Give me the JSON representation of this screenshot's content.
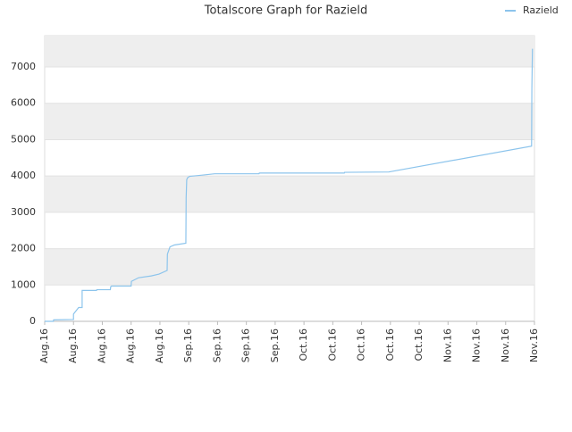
{
  "chart_data": {
    "type": "line",
    "title": "Totalscore Graph for Razield",
    "x": [
      0,
      0.3,
      0.31,
      1.0,
      1.0,
      1.1,
      1.18,
      1.3,
      1.3,
      1.8,
      1.81,
      2.28,
      2.29,
      2.32,
      3.0,
      3.01,
      3.26,
      3.7,
      3.97,
      4.25,
      4.26,
      4.35,
      4.5,
      4.9,
      4.91,
      4.93,
      4.96,
      5.03,
      5.43,
      5.9,
      7.44,
      7.45,
      10.4,
      10.41,
      11.94,
      16.9,
      16.91,
      16.93
    ],
    "series": [
      {
        "name": "Razield",
        "color": "#8cc4ec",
        "values": [
          0,
          0,
          40,
          50,
          200,
          300,
          380,
          380,
          850,
          850,
          870,
          870,
          950,
          970,
          970,
          1100,
          1200,
          1250,
          1300,
          1400,
          1850,
          2050,
          2100,
          2150,
          3400,
          3900,
          3950,
          3990,
          4020,
          4060,
          4060,
          4080,
          4080,
          4100,
          4110,
          4820,
          6400,
          7500
        ]
      }
    ],
    "xlim": [
      0,
      17
    ],
    "xticks": [
      {
        "value": 0,
        "label": "Aug.16"
      },
      {
        "value": 1,
        "label": "Aug.16"
      },
      {
        "value": 2,
        "label": "Aug.16"
      },
      {
        "value": 3,
        "label": "Aug.16"
      },
      {
        "value": 4,
        "label": "Aug.16"
      },
      {
        "value": 5,
        "label": "Sep.16"
      },
      {
        "value": 6,
        "label": "Sep.16"
      },
      {
        "value": 7,
        "label": "Sep.16"
      },
      {
        "value": 8,
        "label": "Sep.16"
      },
      {
        "value": 9,
        "label": "Oct.16"
      },
      {
        "value": 10,
        "label": "Oct.16"
      },
      {
        "value": 11,
        "label": "Oct.16"
      },
      {
        "value": 12,
        "label": "Oct.16"
      },
      {
        "value": 13,
        "label": "Oct.16"
      },
      {
        "value": 14,
        "label": "Nov.16"
      },
      {
        "value": 15,
        "label": "Nov.16"
      },
      {
        "value": 16,
        "label": "Nov.16"
      },
      {
        "value": 17,
        "label": "Nov.16"
      }
    ],
    "ylim": [
      0,
      7860
    ],
    "yticks": [
      0,
      1000,
      2000,
      3000,
      4000,
      5000,
      6000,
      7000
    ],
    "grid": true,
    "legend": "top-right"
  }
}
